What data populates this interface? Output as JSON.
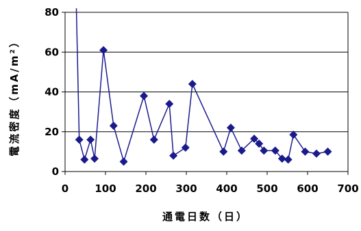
{
  "chart_data": {
    "type": "line",
    "xlabel": "通電日数（日）",
    "ylabel": "電流密度（mA/m",
    "ylabel_superscript": "2",
    "ylabel_close": "）",
    "xlim": [
      0,
      700
    ],
    "ylim": [
      0,
      80
    ],
    "x_ticks": [
      0,
      100,
      200,
      300,
      400,
      500,
      600,
      700
    ],
    "y_ticks": [
      0,
      20,
      40,
      60,
      80
    ],
    "grid": {
      "horizontal": true,
      "vertical": false
    },
    "series": [
      {
        "color": "#1a1a8c",
        "marker": "diamond",
        "points": [
          {
            "x": 28,
            "y": 82
          },
          {
            "x": 35,
            "y": 16
          },
          {
            "x": 48,
            "y": 6
          },
          {
            "x": 63,
            "y": 16
          },
          {
            "x": 73,
            "y": 6.5
          },
          {
            "x": 95,
            "y": 61
          },
          {
            "x": 120,
            "y": 23
          },
          {
            "x": 145,
            "y": 5
          },
          {
            "x": 195,
            "y": 38
          },
          {
            "x": 220,
            "y": 16
          },
          {
            "x": 258,
            "y": 34
          },
          {
            "x": 268,
            "y": 8
          },
          {
            "x": 298,
            "y": 12
          },
          {
            "x": 315,
            "y": 44
          },
          {
            "x": 392,
            "y": 10
          },
          {
            "x": 410,
            "y": 22
          },
          {
            "x": 437,
            "y": 10.5
          },
          {
            "x": 468,
            "y": 16.5
          },
          {
            "x": 480,
            "y": 14
          },
          {
            "x": 492,
            "y": 10.5
          },
          {
            "x": 520,
            "y": 10.5
          },
          {
            "x": 537,
            "y": 6.5
          },
          {
            "x": 552,
            "y": 6
          },
          {
            "x": 565,
            "y": 18.5
          },
          {
            "x": 594,
            "y": 10
          },
          {
            "x": 622,
            "y": 9
          },
          {
            "x": 650,
            "y": 10
          }
        ]
      }
    ]
  }
}
